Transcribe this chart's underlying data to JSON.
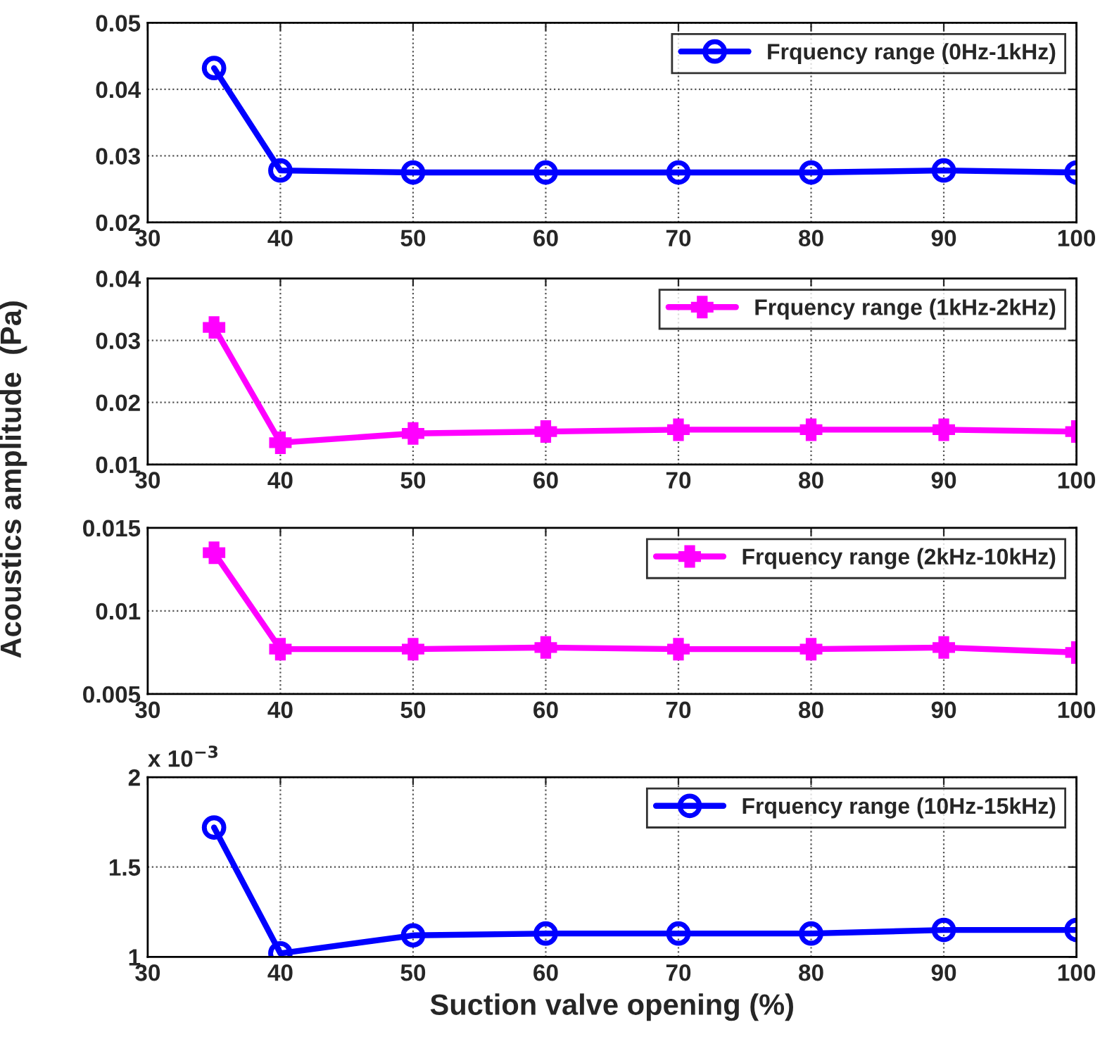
{
  "chart_data": [
    {
      "type": "line",
      "x": [
        35,
        40,
        50,
        60,
        70,
        80,
        90,
        100
      ],
      "xlim": [
        30,
        100
      ],
      "xticks": [
        30,
        40,
        50,
        60,
        70,
        80,
        90,
        100
      ],
      "ylim": [
        0.02,
        0.05
      ],
      "yticks": [
        0.02,
        0.03,
        0.04,
        0.05
      ],
      "grid": true,
      "legend": "top right",
      "marker": "circle",
      "line_style": "solid",
      "series": [
        {
          "name": "Frquency range (0Hz-1kHz)",
          "color": "#0000ff",
          "values": [
            0.0432,
            0.0278,
            0.0275,
            0.0275,
            0.0275,
            0.0275,
            0.0278,
            0.0275
          ]
        }
      ]
    },
    {
      "type": "line",
      "x": [
        35,
        40,
        50,
        60,
        70,
        80,
        90,
        100
      ],
      "xlim": [
        30,
        100
      ],
      "xticks": [
        30,
        40,
        50,
        60,
        70,
        80,
        90,
        100
      ],
      "ylim": [
        0.01,
        0.04
      ],
      "yticks": [
        0.01,
        0.02,
        0.03,
        0.04
      ],
      "grid": true,
      "legend": "top right",
      "marker": "cross",
      "line_style": "solid",
      "ylabel": "Acoustics amplitude  (Pa)",
      "series": [
        {
          "name": "Frquency range (1kHz-2kHz)",
          "color": "#ff00ff",
          "values": [
            0.0321,
            0.0135,
            0.015,
            0.0153,
            0.0156,
            0.0156,
            0.0156,
            0.0153
          ]
        }
      ]
    },
    {
      "type": "line",
      "x": [
        35,
        40,
        50,
        60,
        70,
        80,
        90,
        100
      ],
      "xlim": [
        30,
        100
      ],
      "xticks": [
        30,
        40,
        50,
        60,
        70,
        80,
        90,
        100
      ],
      "ylim": [
        0.005,
        0.015
      ],
      "yticks": [
        0.005,
        0.01,
        0.015
      ],
      "grid": true,
      "legend": "top right",
      "marker": "cross",
      "line_style": "solid",
      "series": [
        {
          "name": "Frquency range (2kHz-10kHz)",
          "color": "#ff00ff",
          "values": [
            0.0135,
            0.0077,
            0.0077,
            0.0078,
            0.0077,
            0.0077,
            0.0078,
            0.0075
          ]
        }
      ]
    },
    {
      "type": "line",
      "x": [
        35,
        40,
        50,
        60,
        70,
        80,
        90,
        100
      ],
      "xlim": [
        30,
        100
      ],
      "xticks": [
        30,
        40,
        50,
        60,
        70,
        80,
        90,
        100
      ],
      "ylim": [
        1,
        2
      ],
      "yticks": [
        1,
        1.5,
        2
      ],
      "grid": true,
      "legend": "top right",
      "marker": "circle",
      "line_style": "solid",
      "xlabel": "Suction valve opening (%)",
      "annotations": [
        "x 10$^{−3}$"
      ],
      "series": [
        {
          "name": "Frquency range (10Hz-15kHz)",
          "color": "#0000ff",
          "values": [
            1.72,
            1.02,
            1.12,
            1.13,
            1.13,
            1.13,
            1.15,
            1.15
          ]
        }
      ]
    }
  ]
}
